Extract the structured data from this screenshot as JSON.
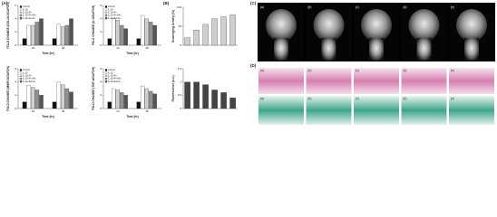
{
  "panel_labels": [
    "(A)",
    "(B)",
    "(C)",
    "(D)"
  ],
  "chart_data": [
    {
      "type": "bar",
      "y_label": "FOLD CHANGE (COL2A1/GAPDH)",
      "x_label": "Time (hr)",
      "categories": [
        "24",
        "48"
      ],
      "series": [
        {
          "name": "Control",
          "color": "#111111",
          "values": [
            1,
            1
          ]
        },
        {
          "name": "IL-1β",
          "color": "#ffffff",
          "values": [
            3,
            3.2
          ]
        },
        {
          "name": "IL-1β+Fe",
          "color": "#d0d0d0",
          "values": [
            3,
            2.8
          ]
        },
        {
          "name": "IL-1β+Fe+Mn",
          "color": "#909090",
          "values": [
            3.5,
            3
          ]
        },
        {
          "name": "IL-1β+Ferrite",
          "color": "#555555",
          "values": [
            4,
            4
          ]
        }
      ],
      "ylim": [
        0,
        6
      ],
      "yticks": [
        0,
        2,
        4,
        6
      ]
    },
    {
      "type": "bar",
      "y_label": "FOLD CHANGE (IL-6/GAPDH)",
      "x_label": "Time (hr)",
      "categories": [
        "24",
        "48"
      ],
      "series": [
        {
          "name": "Control",
          "color": "#111111",
          "values": [
            1,
            1
          ]
        },
        {
          "name": "IL-1β",
          "color": "#ffffff",
          "values": [
            4,
            4.5
          ]
        },
        {
          "name": "IL-1β+Fe",
          "color": "#d0d0d0",
          "values": [
            3.8,
            4
          ]
        },
        {
          "name": "IL-1β+Fe+Mn",
          "color": "#909090",
          "values": [
            3,
            3.5
          ]
        },
        {
          "name": "IL-1β+Ferrite",
          "color": "#555555",
          "values": [
            2.5,
            3
          ]
        }
      ],
      "ylim": [
        0,
        6
      ],
      "yticks": [
        0,
        2,
        4,
        6
      ]
    },
    {
      "type": "bar",
      "y_label": "Scavenging Activity (%)",
      "categories": [
        null,
        null,
        null,
        null,
        null,
        null
      ],
      "series": [
        {
          "name": "Scavenging",
          "color": "#cfcfcf",
          "values": [
            20,
            40,
            55,
            70,
            75,
            80
          ]
        }
      ],
      "ylim": [
        0,
        100
      ],
      "yticks": [
        0,
        50,
        100
      ]
    },
    {
      "type": "bar",
      "y_label": "FOLD CHANGE (MMP13/GAPDH)",
      "x_label": "Time (hr)",
      "categories": [
        "24",
        "48"
      ],
      "series": [
        {
          "name": "Control",
          "color": "#111111",
          "values": [
            1,
            1
          ]
        },
        {
          "name": "IL-1β",
          "color": "#ffffff",
          "values": [
            3.5,
            4
          ]
        },
        {
          "name": "IL-1β+Fe",
          "color": "#d0d0d0",
          "values": [
            3.2,
            3.6
          ]
        },
        {
          "name": "IL-1β+Fe+Mn",
          "color": "#909090",
          "values": [
            2.8,
            3
          ]
        },
        {
          "name": "IL-1β+Ferrite",
          "color": "#555555",
          "values": [
            2,
            2.5
          ]
        }
      ],
      "ylim": [
        0,
        6
      ],
      "yticks": [
        0,
        2,
        4,
        6
      ]
    },
    {
      "type": "bar",
      "y_label": "FOLD CHANGE (TNF-α/GAPDH)",
      "x_label": "Time (hr)",
      "categories": [
        "24",
        "48"
      ],
      "series": [
        {
          "name": "Control",
          "color": "#111111",
          "values": [
            1,
            1
          ]
        },
        {
          "name": "IL-1β",
          "color": "#ffffff",
          "values": [
            3,
            3.4
          ]
        },
        {
          "name": "IL-1β+Fe",
          "color": "#d0d0d0",
          "values": [
            2.8,
            3
          ]
        },
        {
          "name": "IL-1β+Fe+Mn",
          "color": "#909090",
          "values": [
            2.4,
            2.6
          ]
        },
        {
          "name": "IL-1β+Ferrite",
          "color": "#555555",
          "values": [
            2,
            2.2
          ]
        }
      ],
      "ylim": [
        0,
        6
      ],
      "yticks": [
        0,
        2,
        4,
        6
      ]
    },
    {
      "type": "bar",
      "y_label": "Fluorescence (a.u.)",
      "categories": [
        null,
        null,
        null,
        null,
        null,
        null
      ],
      "series": [
        {
          "name": "Fluorescence",
          "color": "#444444",
          "values": [
            1,
            1,
            0.9,
            0.7,
            0.6,
            0.4
          ]
        }
      ],
      "ylim": [
        0,
        1.5
      ],
      "yticks": [
        0,
        0.5,
        1,
        1.5
      ]
    }
  ],
  "image_labels": [
    "(a)",
    "(b)",
    "(c)",
    "(d)",
    "(e)"
  ]
}
